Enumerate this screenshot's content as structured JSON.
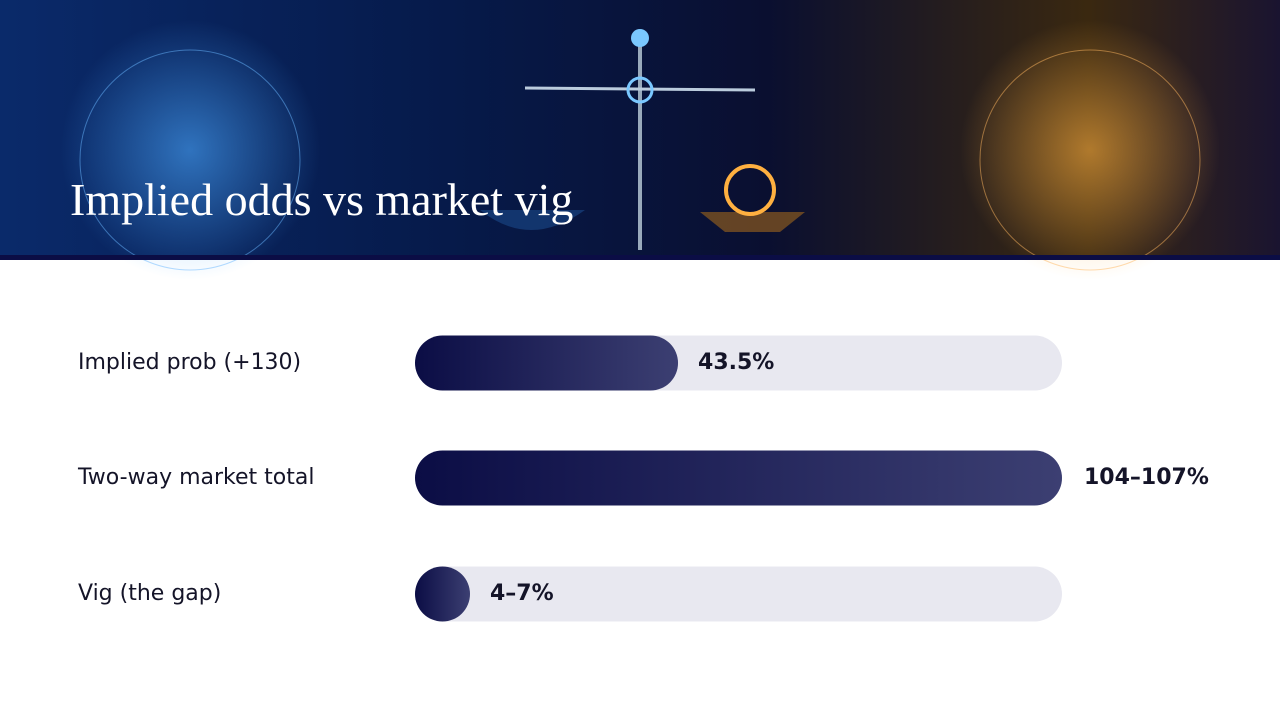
{
  "chart_data": {
    "type": "bar",
    "orientation": "horizontal",
    "title": "Implied odds vs market vig",
    "categories": [
      "Implied prob (+130)",
      "Two-way market total",
      "Vig (the gap)"
    ],
    "values": [
      43.5,
      [
        104,
        107
      ],
      [
        4,
        7
      ]
    ],
    "value_labels": [
      "43.5%",
      "104–107%",
      "4–7%"
    ],
    "xlim": [
      0,
      107
    ],
    "color": "#0b0d45"
  }
}
